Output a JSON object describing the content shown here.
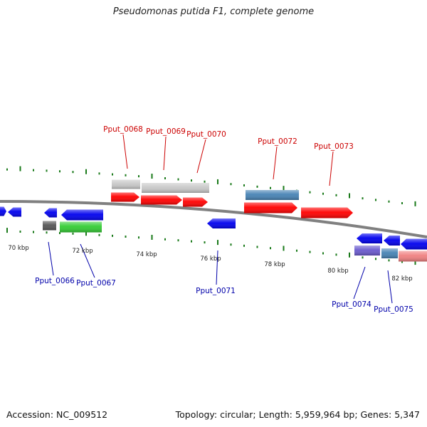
{
  "title": "Pseudomonas putida F1, complete genome",
  "footer": {
    "accession": "Accession: NC_009512",
    "summary": "Topology: circular; Length: 5,959,964 bp; Genes: 5,347"
  },
  "colors": {
    "backbone": "#808080",
    "tick": "#1a7a1a",
    "label_forward": "#cc0000",
    "label_reverse": "#0000aa",
    "gene_red": "#ff0000",
    "gene_blue": "#0000ee",
    "gene_green": "#33cc33",
    "gene_steel": "#4682b4",
    "gene_gray_light": "#c8c8c8",
    "gene_gray_dark": "#555555",
    "gene_purple": "#6a5acd",
    "gene_pink": "#f08080"
  },
  "scale_labels": [
    "70 kbp",
    "72 kbp",
    "74 kbp",
    "76 kbp",
    "78 kbp",
    "80 kbp",
    "82 kbp"
  ],
  "gene_labels_forward": [
    "Pput_0068",
    "Pput_0069",
    "Pput_0070",
    "Pput_0072",
    "Pput_0073"
  ],
  "gene_labels_reverse": [
    "Pput_0066",
    "Pput_0067",
    "Pput_0071",
    "Pput_0074",
    "Pput_0075"
  ]
}
